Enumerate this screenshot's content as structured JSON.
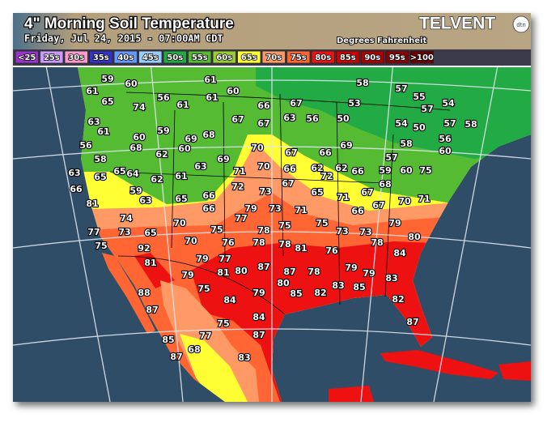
{
  "header": {
    "title": "4\" Morning Soil Temperature",
    "subtitle": "Friday, Jul 24, 2015 - 07:00AM CDT",
    "units": "Degrees Fahrenheit",
    "logo": "TELVENT",
    "logo_badge": "dtn"
  },
  "legend": [
    {
      "label": "<25",
      "color": "#9933cc"
    },
    {
      "label": "25s",
      "color": "#cc99ff"
    },
    {
      "label": "30s",
      "color": "#ff99cc"
    },
    {
      "label": "35s",
      "color": "#3333cc"
    },
    {
      "label": "40s",
      "color": "#6699ff"
    },
    {
      "label": "45s",
      "color": "#99ccff"
    },
    {
      "label": "50s",
      "color": "#22aa44"
    },
    {
      "label": "55s",
      "color": "#55bb33"
    },
    {
      "label": "60s",
      "color": "#99cc33"
    },
    {
      "label": "65s",
      "color": "#ffff33"
    },
    {
      "label": "70s",
      "color": "#ff9966"
    },
    {
      "label": "75s",
      "color": "#ff6633"
    },
    {
      "label": "80s",
      "color": "#ee1111"
    },
    {
      "label": "85s",
      "color": "#cc0000"
    },
    {
      "label": "90s",
      "color": "#aa0000"
    },
    {
      "label": "95s",
      "color": "#880000"
    },
    {
      "label": ">100",
      "color": "#660000"
    }
  ],
  "stations": [
    59,
    60,
    61,
    58,
    61,
    65,
    61,
    60,
    74,
    56,
    61,
    66,
    67,
    53,
    57,
    55,
    54,
    57,
    63,
    61,
    60,
    59,
    69,
    68,
    67,
    67,
    63,
    56,
    50,
    54,
    50,
    57,
    58,
    56,
    68,
    62,
    60,
    70,
    67,
    66,
    69,
    57,
    58,
    56,
    60,
    58,
    65,
    64,
    62,
    61,
    63,
    69,
    71,
    70,
    66,
    62,
    72,
    62,
    66,
    59,
    60,
    75,
    63,
    65,
    66,
    59,
    72,
    73,
    67,
    65,
    71,
    67,
    68,
    70,
    71,
    81,
    63,
    65,
    66,
    66,
    77,
    79,
    73,
    71,
    66,
    67,
    74,
    70,
    75,
    75,
    73,
    73,
    79,
    77,
    73,
    65,
    75,
    78,
    78,
    80,
    75,
    92,
    70,
    76,
    78,
    78,
    81,
    76,
    84,
    81,
    79,
    77,
    87,
    87,
    78,
    79,
    79,
    81,
    80,
    79,
    80,
    79,
    88,
    75,
    85,
    82,
    83,
    85,
    83,
    87,
    84,
    84,
    82,
    75,
    87,
    87,
    85,
    77,
    87,
    68,
    83
  ]
}
